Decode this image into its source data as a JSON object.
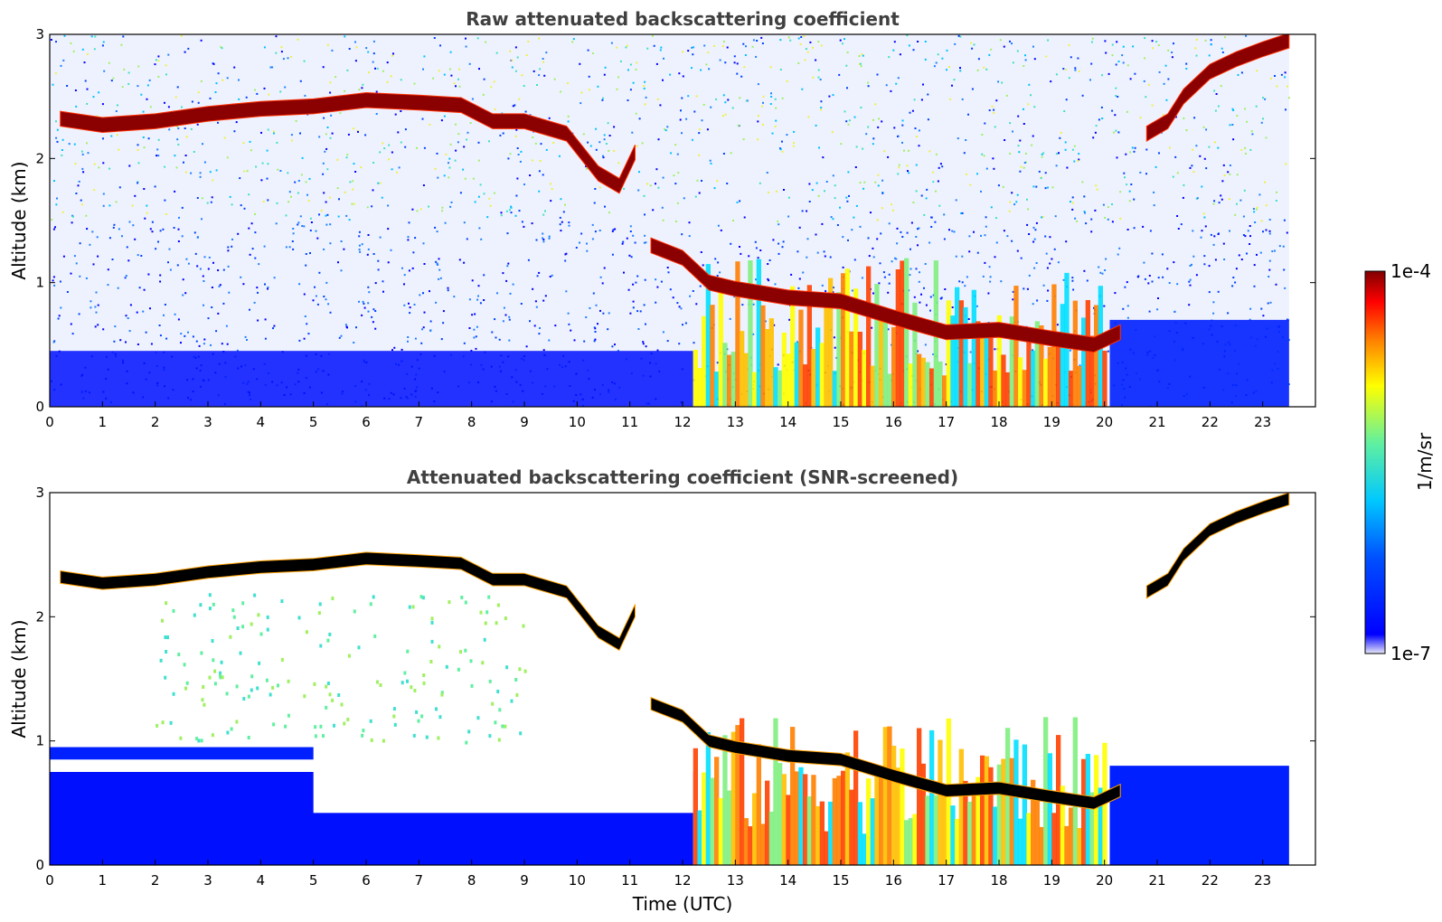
{
  "chart_data": [
    {
      "type": "heatmap",
      "title": "Raw attenuated backscattering coefficient",
      "xlabel": "",
      "ylabel": "Altitude (km)",
      "xlim": [
        0,
        24
      ],
      "ylim": [
        0,
        3
      ],
      "x_ticks": [
        "0",
        "1",
        "2",
        "3",
        "4",
        "5",
        "6",
        "7",
        "8",
        "9",
        "10",
        "11",
        "12",
        "13",
        "14",
        "15",
        "16",
        "17",
        "18",
        "19",
        "20",
        "21",
        "22",
        "23"
      ],
      "y_ticks": [
        "0",
        "1",
        "2",
        "3"
      ],
      "data_end_hour": 23.5,
      "cloud_layers": [
        {
          "name": "upper-cloud",
          "points": [
            [
              0.2,
              2.32
            ],
            [
              1,
              2.27
            ],
            [
              2,
              2.3
            ],
            [
              3,
              2.36
            ],
            [
              4,
              2.4
            ],
            [
              5,
              2.42
            ],
            [
              6,
              2.47
            ],
            [
              7,
              2.45
            ],
            [
              7.8,
              2.43
            ],
            [
              8.4,
              2.3
            ],
            [
              9,
              2.3
            ],
            [
              9.8,
              2.2
            ],
            [
              10.4,
              1.88
            ],
            [
              10.8,
              1.78
            ],
            [
              11.1,
              2.05
            ]
          ]
        },
        {
          "name": "descending-cloud",
          "points": [
            [
              11.4,
              1.3
            ],
            [
              12,
              1.2
            ],
            [
              12.5,
              1.0
            ],
            [
              13,
              0.95
            ],
            [
              14,
              0.88
            ],
            [
              15,
              0.85
            ],
            [
              16,
              0.72
            ],
            [
              17,
              0.6
            ],
            [
              18,
              0.62
            ],
            [
              19,
              0.55
            ],
            [
              19.8,
              0.5
            ],
            [
              20.3,
              0.6
            ]
          ]
        },
        {
          "name": "late-high-cloud",
          "points": [
            [
              20.8,
              2.2
            ],
            [
              21.2,
              2.3
            ],
            [
              21.5,
              2.5
            ],
            [
              22,
              2.7
            ],
            [
              22.5,
              2.8
            ],
            [
              23,
              2.88
            ],
            [
              23.5,
              2.95
            ]
          ]
        }
      ],
      "aerosol_layers": [
        {
          "name": "low-aerosol",
          "x_range": [
            0,
            12.2
          ],
          "y_range": [
            0,
            0.45
          ]
        },
        {
          "name": "precipitation-virga",
          "x_range": [
            12.2,
            20
          ],
          "y_range": [
            0,
            1.2
          ]
        }
      ]
    },
    {
      "type": "heatmap",
      "title": "Attenuated backscattering coefficient (SNR-screened)",
      "xlabel": "Time (UTC)",
      "ylabel": "Altitude (km)",
      "xlim": [
        0,
        24
      ],
      "ylim": [
        0,
        3
      ],
      "x_ticks": [
        "0",
        "1",
        "2",
        "3",
        "4",
        "5",
        "6",
        "7",
        "8",
        "9",
        "10",
        "11",
        "12",
        "13",
        "14",
        "15",
        "16",
        "17",
        "18",
        "19",
        "20",
        "21",
        "22",
        "23"
      ],
      "y_ticks": [
        "0",
        "1",
        "2",
        "3"
      ],
      "data_end_hour": 23.5
    }
  ],
  "colorbar": {
    "label": "1/m/sr",
    "max_label": "1e-4",
    "min_label": "1e-7",
    "colormap": [
      "#e8e8f8",
      "#0000ff",
      "#0080ff",
      "#00e0ff",
      "#60f0a0",
      "#ffff00",
      "#ff8000",
      "#ff0000",
      "#800000"
    ]
  }
}
